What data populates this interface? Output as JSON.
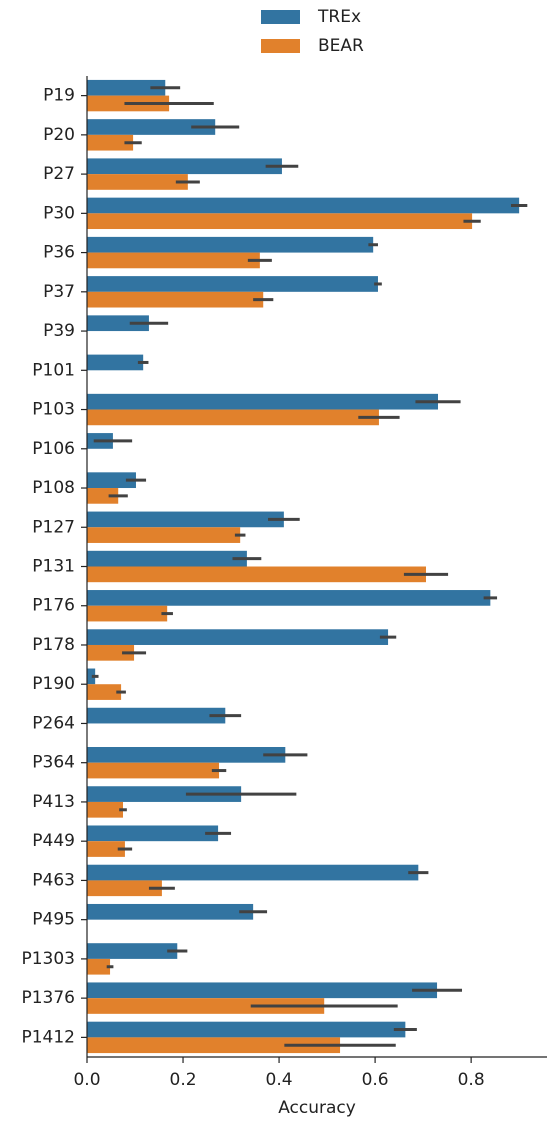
{
  "chart_data": {
    "type": "barh",
    "xlabel": "Accuracy",
    "categories": [
      "P19",
      "P20",
      "P27",
      "P30",
      "P36",
      "P37",
      "P39",
      "P101",
      "P103",
      "P106",
      "P108",
      "P127",
      "P131",
      "P176",
      "P178",
      "P190",
      "P264",
      "P364",
      "P413",
      "P449",
      "P463",
      "P495",
      "P1303",
      "P1376",
      "P1412"
    ],
    "series": [
      {
        "name": "TREx",
        "color": "#3274a1",
        "values": [
          0.163,
          0.267,
          0.406,
          0.9,
          0.596,
          0.606,
          0.129,
          0.117,
          0.731,
          0.054,
          0.102,
          0.41,
          0.333,
          0.84,
          0.627,
          0.017,
          0.288,
          0.413,
          0.321,
          0.273,
          0.69,
          0.346,
          0.188,
          0.729,
          0.663
        ],
        "errors": [
          0.031,
          0.05,
          0.034,
          0.017,
          0.01,
          0.008,
          0.04,
          0.011,
          0.047,
          0.04,
          0.021,
          0.033,
          0.03,
          0.014,
          0.017,
          0.007,
          0.033,
          0.046,
          0.115,
          0.027,
          0.021,
          0.029,
          0.021,
          0.052,
          0.024
        ]
      },
      {
        "name": "BEAR",
        "color": "#e1812c",
        "values": [
          0.171,
          0.096,
          0.21,
          0.802,
          0.36,
          0.367,
          null,
          null,
          0.608,
          null,
          0.065,
          0.319,
          0.706,
          0.167,
          0.098,
          0.071,
          null,
          0.275,
          0.075,
          0.079,
          0.156,
          null,
          0.048,
          0.494,
          0.527
        ],
        "errors": [
          0.093,
          0.018,
          0.025,
          0.018,
          0.025,
          0.021,
          null,
          null,
          0.043,
          null,
          0.02,
          0.011,
          0.046,
          0.012,
          0.025,
          0.01,
          null,
          0.015,
          0.008,
          0.015,
          0.027,
          null,
          0.007,
          0.153,
          0.116
        ]
      }
    ],
    "xlim": [
      0,
      0.958
    ],
    "xticks": [
      {
        "value": 0,
        "label": "0.0"
      },
      0.2,
      0.4,
      0.6,
      0.8
    ],
    "errorbar_color": "#424242",
    "legend": "upper center",
    "grid": false
  }
}
